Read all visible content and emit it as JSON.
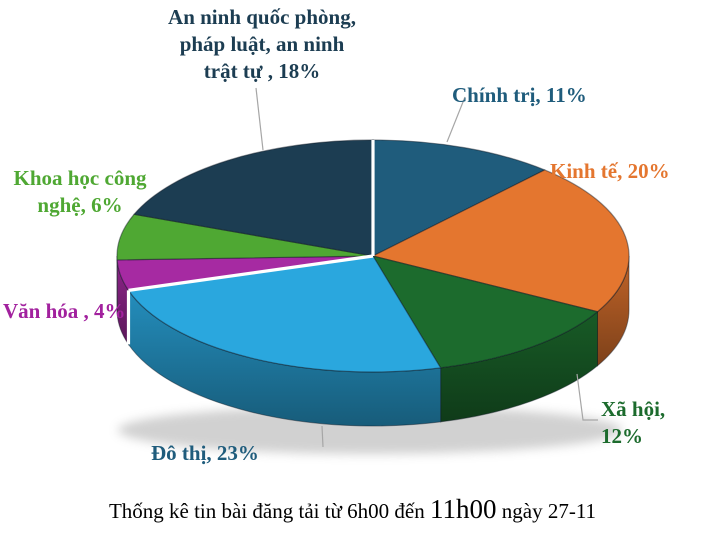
{
  "caption": {
    "prefix": "Thống kê tin bài đăng tải từ 6h00 đến ",
    "highlight": "11h00",
    "suffix": " ngày 27-11"
  },
  "chart_data": {
    "type": "pie",
    "style": "3d-pie",
    "title": "Thống kê tin bài đăng tải từ 6h00 đến 11h00 ngày 27-11",
    "unit": "%",
    "label_position": "outside",
    "legend": "none",
    "clockwise": true,
    "start_angle_deg": 0,
    "slices": [
      {
        "slug": "chinh-tri",
        "name": "Chính trị",
        "value": 11,
        "color": "#1F5C7C",
        "label_color": "#1F5C7C",
        "label": "Chính trị, 11%"
      },
      {
        "slug": "kinh-te",
        "name": "Kinh tế",
        "value": 20,
        "color": "#E4762F",
        "label_color": "#E4762F",
        "label": "Kinh tế, 20%"
      },
      {
        "slug": "xa-hoi",
        "name": "Xã hội",
        "value": 12,
        "color": "#1C6B2D",
        "label_color": "#1C6B2D",
        "label": "Xã hội, 12%"
      },
      {
        "slug": "do-thi",
        "name": "Đô thị",
        "value": 23,
        "color": "#2AA7DE",
        "label_color": "#1F5C7C",
        "label": "Đô thị, 23%"
      },
      {
        "slug": "van-hoa",
        "name": "Văn hóa",
        "value": 4,
        "color": "#A62AA2",
        "label_color": "#A2219E",
        "label": "Văn hóa , 4%"
      },
      {
        "slug": "khoa-hoc-cong-nghe",
        "name": "Khoa học công nghệ",
        "value": 6,
        "color": "#4FA833",
        "label_color": "#4FA833",
        "label": "Khoa học công\nnghệ, 6%"
      },
      {
        "slug": "an-ninh-quoc-phong",
        "name": "An ninh quốc phòng, pháp luật, an ninh trật tự",
        "value": 18,
        "color": "#1C3D52",
        "label_color": "#1C3D52",
        "label": "An ninh quốc phòng,\npháp luật, an ninh\ntrật tự , 18%"
      }
    ],
    "separator_color": "#FFFFFF",
    "leader_line_color": "#A6A6A6"
  }
}
